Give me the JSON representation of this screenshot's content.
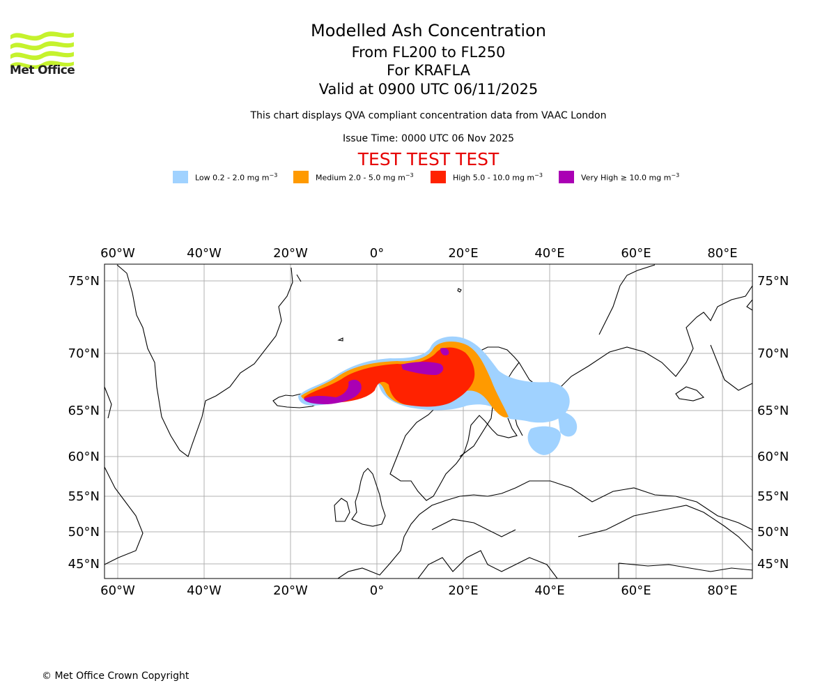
{
  "branding": {
    "logo_text": "Met Office"
  },
  "header": {
    "title": "Modelled Ash Concentration",
    "levels": "From FL200 to FL250",
    "volcano": "For KRAFLA",
    "valid": "Valid at 0900 UTC 06/11/2025",
    "subtitle": "This chart displays QVA compliant concentration data from VAAC London",
    "issue": "Issue Time: 0000 UTC 06 Nov 2025",
    "test_banner": "TEST TEST TEST"
  },
  "legend": [
    {
      "label": "Low 0.2 - 2.0 mg m",
      "unit_exp": "−3",
      "color": "#a0d2ff"
    },
    {
      "label": "Medium 2.0 - 5.0 mg m",
      "unit_exp": "−3",
      "color": "#ff9a00"
    },
    {
      "label": "High 5.0 - 10.0 mg m",
      "unit_exp": "−3",
      "color": "#ff2200"
    },
    {
      "label": "Very High  ≥  10.0 mg m",
      "unit_exp": "−3",
      "color": "#aa00b4"
    }
  ],
  "map": {
    "lon_ticks": [
      "60°W",
      "40°W",
      "20°W",
      "0°",
      "20°E",
      "40°E",
      "60°E",
      "80°E"
    ],
    "lat_ticks": [
      "75°N",
      "70°N",
      "65°N",
      "60°N",
      "55°N",
      "50°N",
      "45°N"
    ],
    "gridline_color": "#b0b0b0",
    "coastline_color": "#000000"
  },
  "footer": {
    "copyright": "© Met Office Crown Copyright"
  }
}
